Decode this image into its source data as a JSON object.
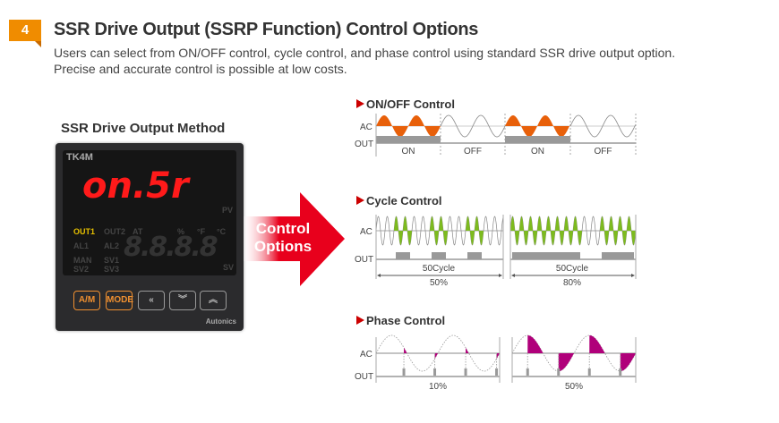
{
  "header": {
    "number": "4",
    "title": "SSR Drive Output (SSRP Function) Control Options",
    "description": [
      "Users can select from ON/OFF control, cycle control, and phase control using standard SSR drive output option.",
      "Precise and accurate control is possible at low costs."
    ]
  },
  "device": {
    "heading": "SSR Drive Output Method",
    "model": "TK4M",
    "pv_display": "on.5r",
    "sv_display": "8.8.8.8",
    "pv_label": "PV",
    "sv_label": "SV",
    "indicators": [
      "OUT1",
      "OUT2",
      "AT",
      "AL1",
      "AL2",
      "MAN",
      "SV1",
      "SV2",
      "SV3",
      "%",
      "°F",
      "°C"
    ],
    "buttons": [
      "A/M",
      "MODE",
      "«",
      "︾",
      "︽"
    ],
    "brand": "Autonics"
  },
  "arrow": {
    "label_line1": "Control",
    "label_line2": "Options"
  },
  "onoff": {
    "title": "ON/OFF Control",
    "ac": "AC",
    "out": "OUT",
    "segments": [
      "ON",
      "OFF",
      "ON",
      "OFF"
    ]
  },
  "cycle": {
    "title": "Cycle Control",
    "ac": "AC",
    "out": "OUT",
    "panels": [
      {
        "cycle": "50Cycle",
        "percent": "50%",
        "duty": 0.5
      },
      {
        "cycle": "50Cycle",
        "percent": "80%",
        "duty": 0.8
      }
    ]
  },
  "phase": {
    "title": "Phase Control",
    "ac": "AC",
    "out": "OUT",
    "panels": [
      {
        "percent": "10%",
        "duty": 0.1
      },
      {
        "percent": "50%",
        "duty": 0.5
      }
    ]
  },
  "colors": {
    "badge": "#f08c00",
    "onoff_fill": "#e8600a",
    "cycle_fill": "#7dbb1e",
    "phase_fill": "#b0007a",
    "arrow": "#e8001c"
  }
}
